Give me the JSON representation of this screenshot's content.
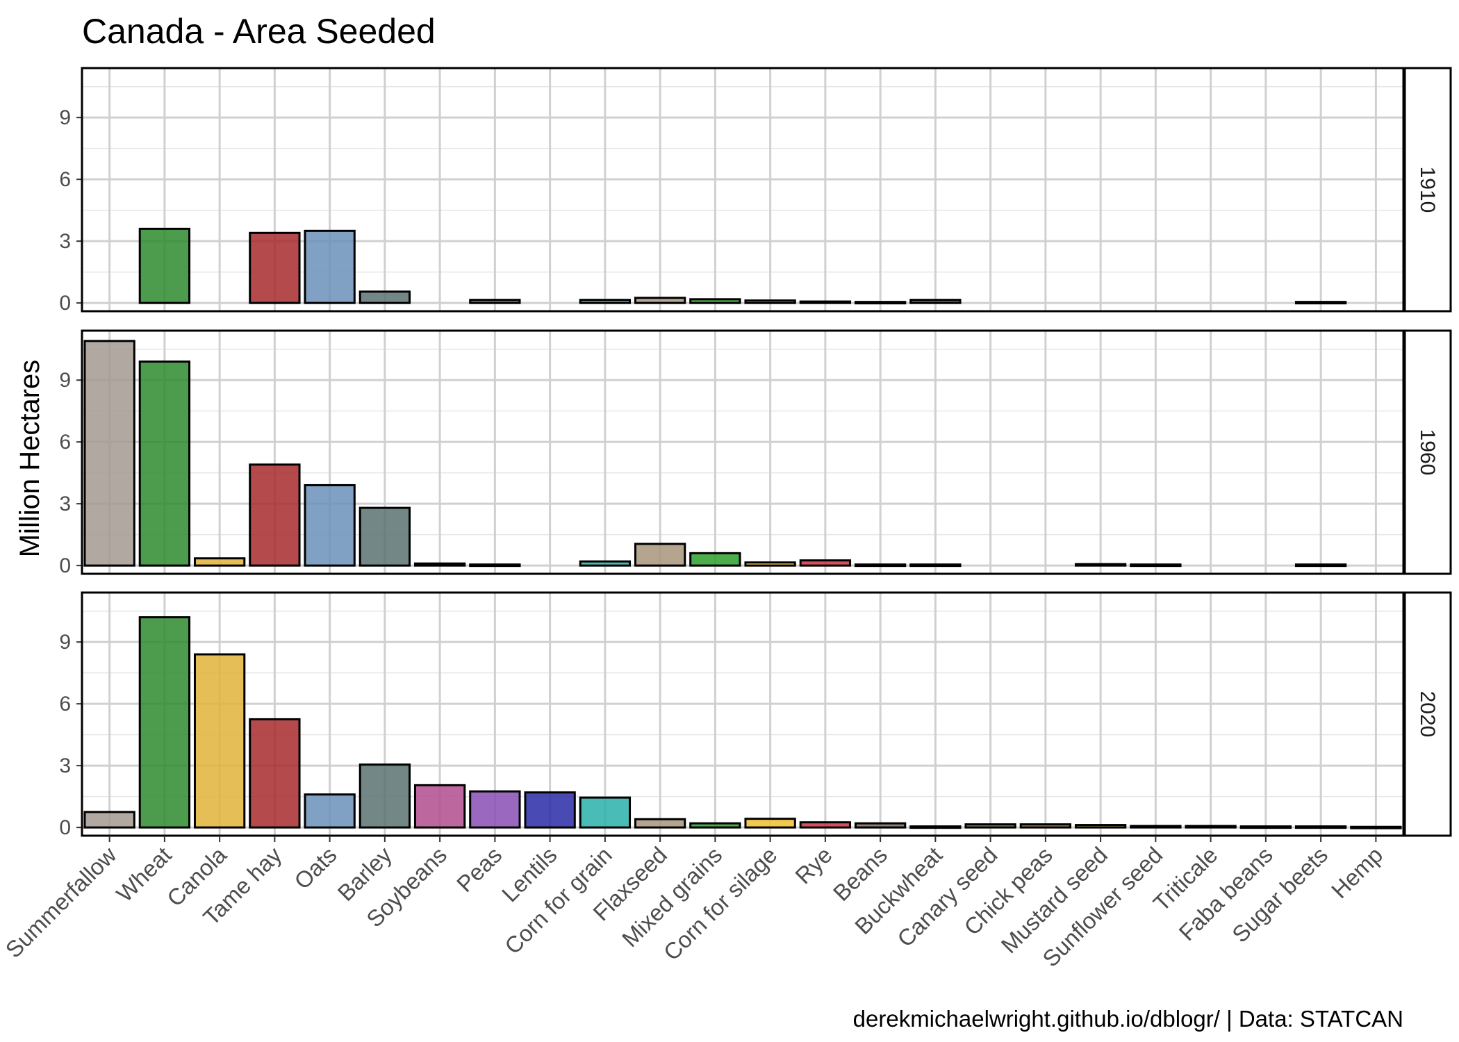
{
  "chart_data": {
    "type": "bar",
    "title": "Canada - Area Seeded",
    "ylabel": "Million Hectares",
    "xlabel": "",
    "caption": "derekmichaelwright.github.io/dblogr/ | Data: STATCAN",
    "ylim": [
      -0.4,
      11.4
    ],
    "yticks": [
      0,
      3,
      6,
      9
    ],
    "grid": true,
    "legend": "none",
    "categories": [
      "Summerfallow",
      "Wheat",
      "Canola",
      "Tame hay",
      "Oats",
      "Barley",
      "Soybeans",
      "Peas",
      "Lentils",
      "Corn for grain",
      "Flaxseed",
      "Mixed grains",
      "Corn for silage",
      "Rye",
      "Beans",
      "Buckwheat",
      "Canary seed",
      "Chick peas",
      "Mustard seed",
      "Sunflower seed",
      "Triticale",
      "Faba beans",
      "Sugar beets",
      "Hemp"
    ],
    "colors": {
      "Summerfallow": "#a39a90",
      "Wheat": "#2e8b2e",
      "Canola": "#e0b33a",
      "Tame hay": "#a82a2e",
      "Oats": "#6a90b8",
      "Barley": "#5a7272",
      "Soybeans": "#b14c8e",
      "Peas": "#8a4db5",
      "Lentils": "#2a2aa8",
      "Corn for grain": "#2ab0aa",
      "Flaxseed": "#a8957a",
      "Mixed grains": "#2ca02c",
      "Corn for silage": "#f0c030",
      "Rye": "#d03040",
      "Beans": "#7a6a5a",
      "Buckwheat": "#4a5a4a",
      "Canary seed": "#6a6a3a",
      "Chick peas": "#8a6a3a",
      "Mustard seed": "#9a8a2a",
      "Sunflower seed": "#c0a020",
      "Triticale": "#7a5a8a",
      "Faba beans": "#5a7a3a",
      "Sugar beets": "#8a2a5a",
      "Hemp": "#3a7a5a"
    },
    "panels": [
      {
        "label": "1910",
        "values": [
          null,
          3.6,
          null,
          3.4,
          3.5,
          0.55,
          null,
          0.15,
          null,
          0.15,
          0.25,
          0.18,
          0.12,
          0.07,
          0.05,
          0.15,
          null,
          null,
          null,
          null,
          null,
          null,
          0.05,
          null
        ]
      },
      {
        "label": "1960",
        "values": [
          10.9,
          9.9,
          0.35,
          4.9,
          3.9,
          2.8,
          0.1,
          0.05,
          null,
          0.2,
          1.05,
          0.6,
          0.15,
          0.25,
          0.05,
          0.05,
          null,
          null,
          0.07,
          0.05,
          null,
          null,
          0.05,
          null
        ]
      },
      {
        "label": "2020",
        "values": [
          0.75,
          10.2,
          8.4,
          5.25,
          1.6,
          3.05,
          2.05,
          1.75,
          1.7,
          1.45,
          0.4,
          0.2,
          0.42,
          0.25,
          0.2,
          0.05,
          0.15,
          0.15,
          0.12,
          0.07,
          0.07,
          0.05,
          0.05,
          0.03
        ]
      }
    ]
  }
}
